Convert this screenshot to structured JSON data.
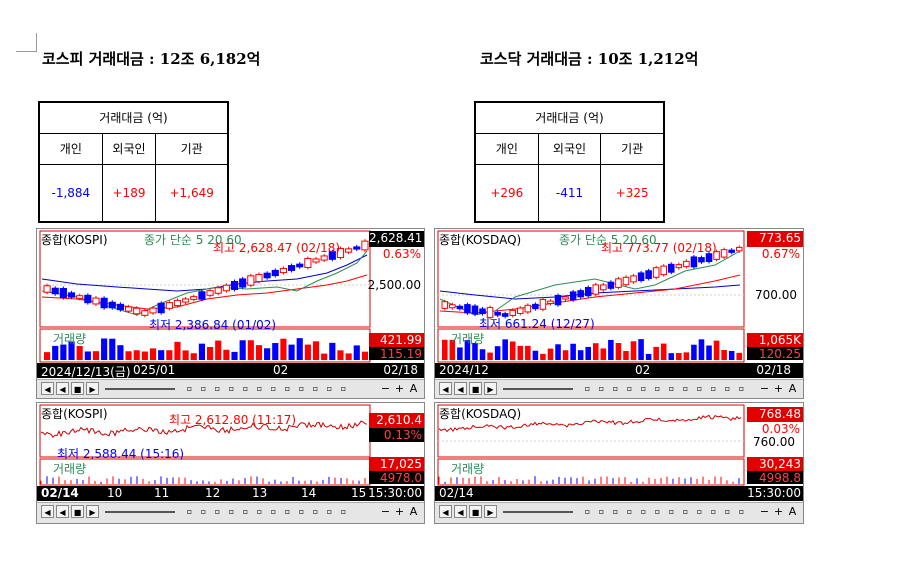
{
  "kospi": {
    "headline": "코스피 거래대금 : 12조 6,182억",
    "table": {
      "title": "거래대금 (억)",
      "headers": [
        "개인",
        "외국인",
        "기관"
      ],
      "values": [
        "-1,884",
        "+189",
        "+1,649"
      ]
    },
    "daily_chart": {
      "title": "종합(KOSPI)",
      "legend": "종가 단순 5 20 60",
      "high_label": "최고 2,628.47 (02/18)",
      "low_label": "최저 2,386.84 (01/02)",
      "price": "2,628.41",
      "change_pct": "0.63%",
      "grid_price": "2,500.00",
      "volume_label": "거래량",
      "volume_value": "421.99",
      "volume_value2": "115.19",
      "date_start": "2024/12/13(금)",
      "date_2": "025/01",
      "date_3": "02",
      "date_end": "02/18"
    },
    "intraday_chart": {
      "title": "종합(KOSPI)",
      "high_label": "최고 2,612.80 (11:17)",
      "low_label": "최저 2,588.44 (15:16)",
      "price": "2,610.4",
      "change_pct": "0.13%",
      "volume_label": "거래량",
      "volume_value": "17,025",
      "volume_value2": "4978.0",
      "times": [
        "02/14",
        "10",
        "11",
        "12",
        "13",
        "14",
        "15",
        "15:30:00"
      ]
    }
  },
  "kosdaq": {
    "headline": "코스닥 거래대금 : 10조 1,212억",
    "table": {
      "title": "거래대금 (억)",
      "headers": [
        "개인",
        "외국인",
        "기관"
      ],
      "values": [
        "+296",
        "-411",
        "+325"
      ]
    },
    "daily_chart": {
      "title": "종합(KOSDAQ)",
      "legend": "종가 단순 5 20 60",
      "high_label": "최고 773.77 (02/18)",
      "low_label": "최저 661.24 (12/27)",
      "price": "773.65",
      "change_pct": "0.67%",
      "grid_price": "700.00",
      "volume_label": "거래량",
      "volume_value": "1,065K",
      "volume_value2": "120.25",
      "date_start": "2024/12",
      "date_3": "02",
      "date_end": "02/18"
    },
    "intraday_chart": {
      "title": "종합(KOSDAQ)",
      "price": "768.48",
      "change_pct": "0.03%",
      "grid_price": "760.00",
      "volume_label": "거래량",
      "volume_value": "30,243",
      "volume_value2": "4998.8",
      "times": [
        "02/14",
        "15:30:00"
      ]
    }
  },
  "colors": {
    "up": "#ff0000",
    "down": "#0000ff",
    "ma5": "#2e8b57",
    "ma20": "#ff0000",
    "ma60": "#0000cd"
  },
  "toolbar_icons": [
    "first-icon",
    "prev-icon",
    "stop-icon",
    "next-icon",
    "zoom-out-icon",
    "zoom-in-icon",
    "add-icon",
    "font-icon"
  ]
}
